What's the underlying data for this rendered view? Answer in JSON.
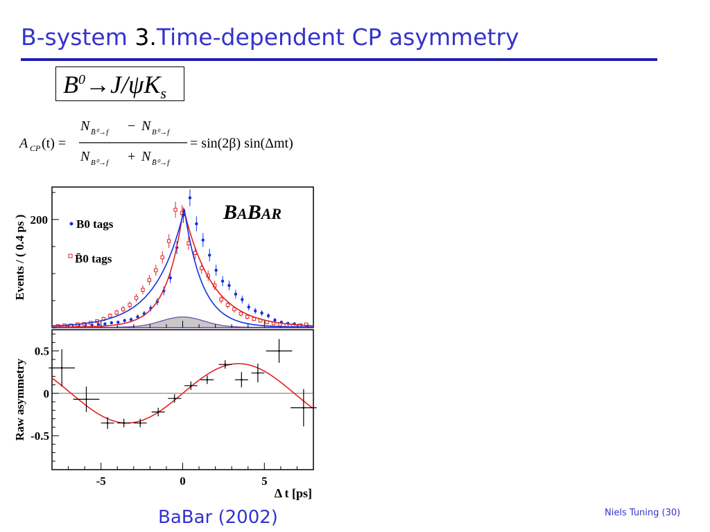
{
  "slide": {
    "title_prefix": "B-system ",
    "title_number": "3.",
    "title_main": "Time-dependent CP asymmetry",
    "footer_left": "BaBar (2002)",
    "footer_right": "Niels Tuning (30)"
  },
  "formula": {
    "lhs_A": "A",
    "lhs_sub": "CP",
    "lhs_arg": "(t) =",
    "N": "N",
    "term_bbar_sub": "B̄⁰→f",
    "term_b_sub": "B⁰→f",
    "minus": "−",
    "plus": "+",
    "rhs": "= sin(2β) sin(Δmt)"
  },
  "colors": {
    "title": "#3333cc",
    "b0_tags": "#1030e0",
    "b0bar_tags": "#e02020",
    "asymmetry_fit": "#e02020",
    "background_fill": "#c8c8c8"
  },
  "chart_data": [
    {
      "type": "scatter",
      "ylabel": "Events / ( 0.4 ps )",
      "logo": "BABAR",
      "y_tick_labels": [
        "200"
      ],
      "ylim": [
        0,
        260
      ],
      "xlim": [
        -8,
        8
      ],
      "legend_placement": "top-left",
      "series": [
        {
          "name": "B0 tags",
          "marker": "filled-circle",
          "points": [
            [
              -7.6,
              2
            ],
            [
              -7.2,
              3
            ],
            [
              -6.8,
              3
            ],
            [
              -6.4,
              4
            ],
            [
              -6.0,
              5
            ],
            [
              -5.6,
              5
            ],
            [
              -5.2,
              6
            ],
            [
              -4.8,
              7
            ],
            [
              -4.4,
              9
            ],
            [
              -4.0,
              10
            ],
            [
              -3.6,
              13
            ],
            [
              -3.2,
              15
            ],
            [
              -2.8,
              20
            ],
            [
              -2.4,
              26
            ],
            [
              -2.0,
              36
            ],
            [
              -1.6,
              48
            ],
            [
              -1.2,
              68
            ],
            [
              -0.8,
              92
            ],
            [
              -0.4,
              148
            ],
            [
              0.0,
              208
            ],
            [
              0.4,
              240
            ],
            [
              0.8,
              192
            ],
            [
              1.2,
              162
            ],
            [
              1.6,
              134
            ],
            [
              2.0,
              106
            ],
            [
              2.4,
              86
            ],
            [
              2.8,
              78
            ],
            [
              3.2,
              62
            ],
            [
              3.6,
              52
            ],
            [
              4.0,
              38
            ],
            [
              4.4,
              31
            ],
            [
              4.8,
              27
            ],
            [
              5.2,
              22
            ],
            [
              5.6,
              14
            ],
            [
              6.0,
              10
            ],
            [
              6.4,
              8
            ],
            [
              6.8,
              7
            ],
            [
              7.2,
              5
            ],
            [
              7.6,
              4
            ]
          ]
        },
        {
          "name": "B̄0 tags",
          "marker": "open-square",
          "points": [
            [
              -7.6,
              3
            ],
            [
              -7.2,
              4
            ],
            [
              -6.8,
              4
            ],
            [
              -6.4,
              6
            ],
            [
              -6.0,
              7
            ],
            [
              -5.6,
              9
            ],
            [
              -5.2,
              12
            ],
            [
              -4.8,
              16
            ],
            [
              -4.4,
              22
            ],
            [
              -4.0,
              28
            ],
            [
              -3.6,
              34
            ],
            [
              -3.2,
              42
            ],
            [
              -2.8,
              55
            ],
            [
              -2.4,
              70
            ],
            [
              -2.0,
              88
            ],
            [
              -1.6,
              106
            ],
            [
              -1.2,
              130
            ],
            [
              -0.8,
              160
            ],
            [
              -0.4,
              218
            ],
            [
              0.0,
              212
            ],
            [
              0.4,
              156
            ],
            [
              0.8,
              138
            ],
            [
              1.2,
              110
            ],
            [
              1.6,
              96
            ],
            [
              2.0,
              78
            ],
            [
              2.4,
              52
            ],
            [
              2.8,
              42
            ],
            [
              3.2,
              34
            ],
            [
              3.6,
              26
            ],
            [
              4.0,
              20
            ],
            [
              4.4,
              16
            ],
            [
              4.8,
              13
            ],
            [
              5.2,
              10
            ],
            [
              5.6,
              8
            ],
            [
              6.0,
              6
            ],
            [
              6.4,
              5
            ],
            [
              6.8,
              4
            ],
            [
              7.2,
              4
            ],
            [
              7.6,
              6
            ]
          ]
        }
      ],
      "background_peak": 19
    },
    {
      "type": "scatter",
      "xlabel": "Δ t [ps]",
      "ylabel": "Raw asymmetry",
      "xlim": [
        -8,
        8
      ],
      "ylim": [
        -0.9,
        0.75
      ],
      "x_ticks": [
        -5,
        0,
        5
      ],
      "y_ticks": [
        0.5,
        0,
        -0.5
      ],
      "x_tick_labels": [
        "-5",
        "0",
        "5"
      ],
      "y_tick_labels": [
        "0.5",
        "0",
        "-0.5"
      ],
      "series": [
        {
          "name": "Raw asymmetry",
          "points": [
            [
              -7.4,
              0.3,
              0.8,
              0.22
            ],
            [
              -5.9,
              -0.07,
              0.8,
              0.15
            ],
            [
              -4.6,
              -0.35,
              0.4,
              0.07
            ],
            [
              -3.6,
              -0.35,
              0.4,
              0.05
            ],
            [
              -2.6,
              -0.35,
              0.4,
              0.05
            ],
            [
              -1.5,
              -0.22,
              0.4,
              0.05
            ],
            [
              -0.5,
              -0.06,
              0.4,
              0.05
            ],
            [
              0.5,
              0.09,
              0.4,
              0.05
            ],
            [
              1.5,
              0.16,
              0.4,
              0.05
            ],
            [
              2.6,
              0.34,
              0.4,
              0.05
            ],
            [
              3.6,
              0.16,
              0.4,
              0.09
            ],
            [
              4.6,
              0.24,
              0.4,
              0.11
            ],
            [
              5.9,
              0.5,
              0.8,
              0.14
            ],
            [
              7.4,
              -0.17,
              0.8,
              0.22
            ]
          ]
        }
      ],
      "fit": {
        "model": "A sin(ω Δt)",
        "amplitude": 0.35,
        "omega": 0.46
      }
    }
  ]
}
